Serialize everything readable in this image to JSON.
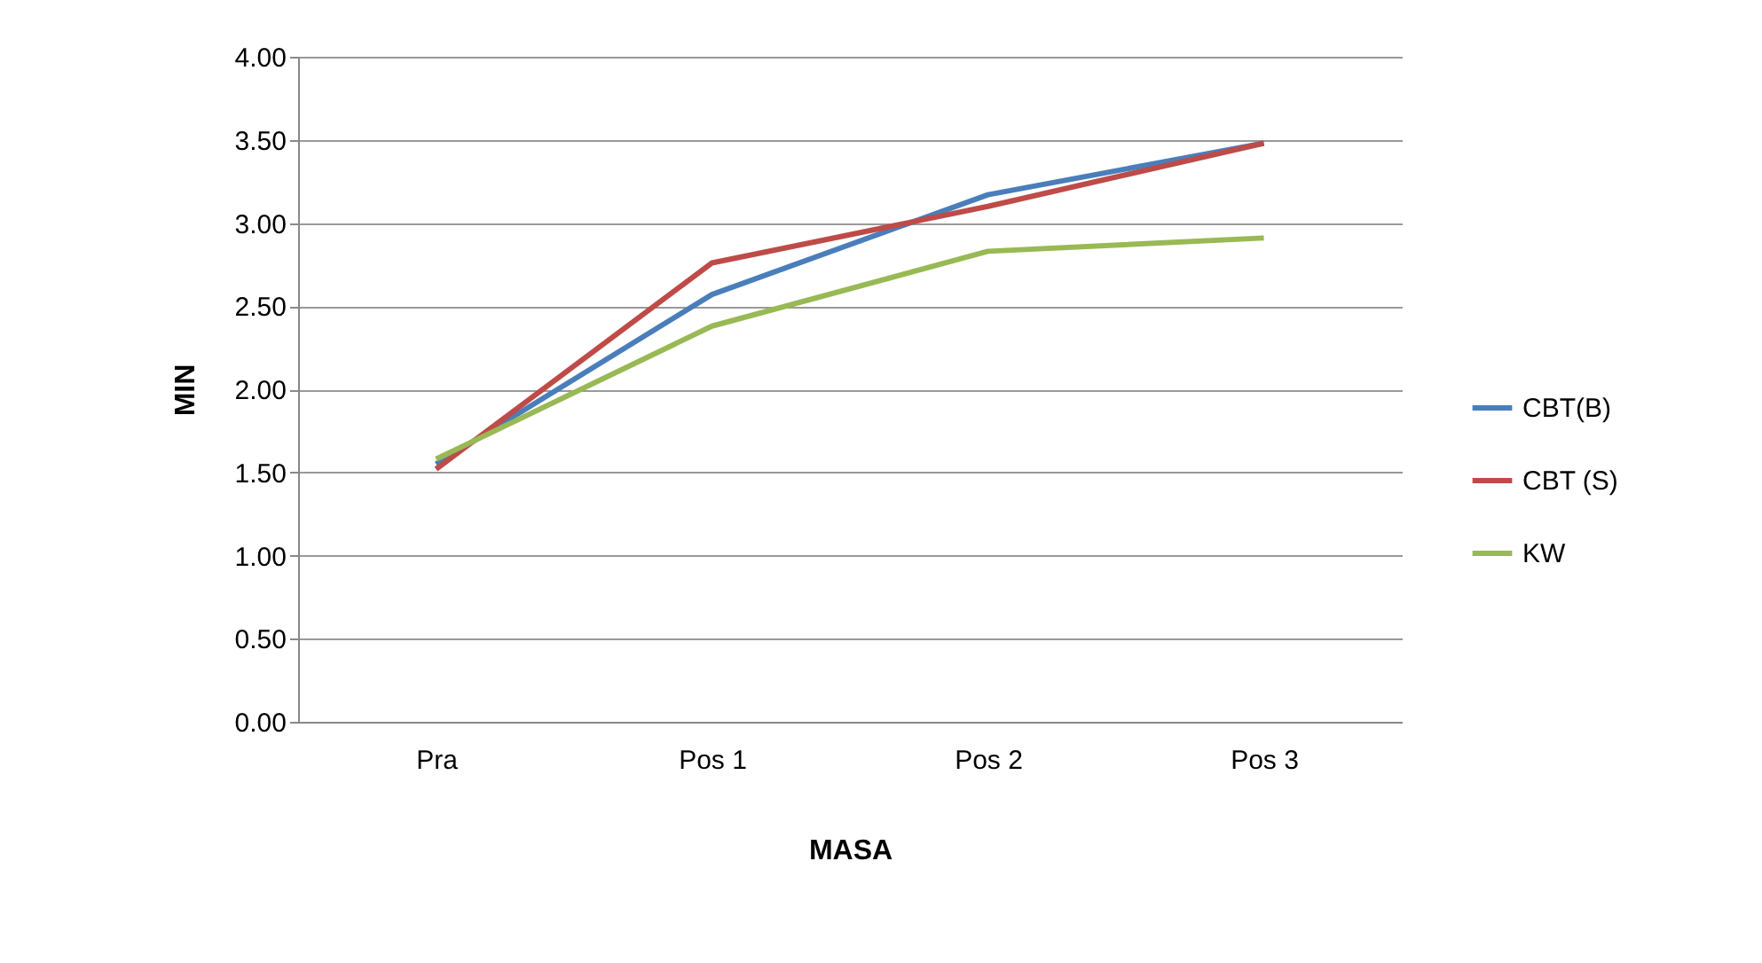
{
  "chart_data": {
    "type": "line",
    "xlabel": "MASA",
    "ylabel": "MIN",
    "categories": [
      "Pra",
      "Pos 1",
      "Pos 2",
      "Pos 3"
    ],
    "series": [
      {
        "name": "CBT(B)",
        "color": "#4a7ebb",
        "values": [
          1.55,
          2.57,
          3.17,
          3.48
        ]
      },
      {
        "name": "CBT (S)",
        "color": "#be4b48",
        "values": [
          1.52,
          2.76,
          3.1,
          3.48
        ]
      },
      {
        "name": "KW",
        "color": "#98b954",
        "values": [
          1.58,
          2.38,
          2.83,
          2.91
        ]
      }
    ],
    "ylim": [
      0,
      4
    ],
    "yticks": [
      {
        "value": 0,
        "label": "0.00"
      },
      {
        "value": 0.5,
        "label": "0.50"
      },
      {
        "value": 1,
        "label": "1.00"
      },
      {
        "value": 1.5,
        "label": "1.50"
      },
      {
        "value": 2,
        "label": "2.00"
      },
      {
        "value": 2.5,
        "label": "2.50"
      },
      {
        "value": 3,
        "label": "3.00"
      },
      {
        "value": 3.5,
        "label": "3.50"
      },
      {
        "value": 4,
        "label": "4.00"
      }
    ],
    "grid": "y",
    "legend": "right",
    "marker": "none",
    "line_style": "solid"
  }
}
